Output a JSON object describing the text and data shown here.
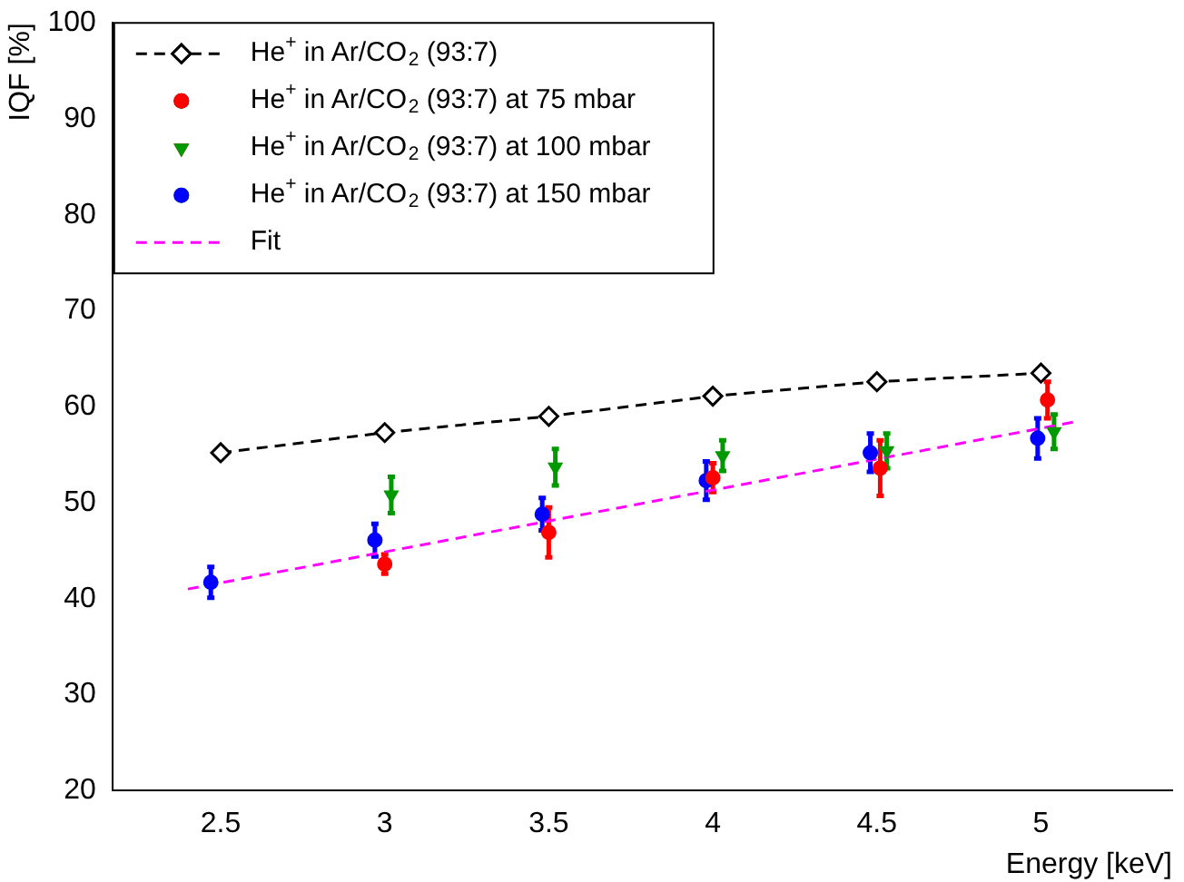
{
  "chart_data": {
    "type": "scatter",
    "xlabel": "Energy [keV]",
    "ylabel": "IQF [%]",
    "xlim": [
      2.17,
      5.4
    ],
    "xticks": [
      2.5,
      3,
      3.5,
      4,
      4.5,
      5
    ],
    "ylim": [
      20,
      100
    ],
    "yticks": [
      20,
      30,
      40,
      50,
      60,
      70,
      80,
      90,
      100
    ],
    "grid": false,
    "legend": "top left",
    "series": [
      {
        "name": "He$^{+}$ in Ar/CO$_{2}$ (93:7)",
        "type": "line",
        "marker": "diamond",
        "line_style": "dashed",
        "color": "#000000",
        "x": [
          2.5,
          3,
          3.5,
          4,
          4.5,
          5
        ],
        "values": [
          55.2,
          57.3,
          59.0,
          61.1,
          62.6,
          63.5
        ]
      },
      {
        "name": "He$^{+}$ in Ar/CO$_{2}$ (93:7) at 75 mbar",
        "type": "scatter",
        "marker": "circle",
        "color": "#ff0000",
        "x": [
          3.0,
          3.5,
          4.0,
          4.51,
          5.02
        ],
        "values": [
          43.6,
          46.9,
          52.6,
          53.6,
          60.7
        ],
        "errors": [
          1,
          2.6,
          1.5,
          2.9,
          1.9
        ]
      },
      {
        "name": "He$^{+}$ in Ar/CO$_{2}$ (93:7) at 100 mbar",
        "type": "scatter",
        "marker": "triangle",
        "color": "#009900",
        "x": [
          3.02,
          3.52,
          4.03,
          4.53,
          5.04
        ],
        "values": [
          50.8,
          53.7,
          54.9,
          55.4,
          57.4
        ],
        "errors": [
          1.9,
          1.9,
          1.6,
          1.8,
          1.8
        ]
      },
      {
        "name": "He$^{+}$ in Ar/CO$_{2}$ (93:7) at 150 mbar",
        "type": "scatter",
        "marker": "circle",
        "color": "#0000ff",
        "x": [
          2.47,
          2.97,
          3.48,
          3.98,
          4.48,
          4.99
        ],
        "values": [
          41.7,
          46.1,
          48.8,
          52.3,
          55.2,
          56.7
        ],
        "errors": [
          1.6,
          1.7,
          1.7,
          2,
          2,
          2.1
        ]
      },
      {
        "name": "Fit",
        "type": "line",
        "marker": "none",
        "line_style": "dashed",
        "color": "#ff00ff",
        "x": [
          2.4,
          5.1
        ],
        "values": [
          41.0,
          58.4
        ]
      }
    ]
  }
}
